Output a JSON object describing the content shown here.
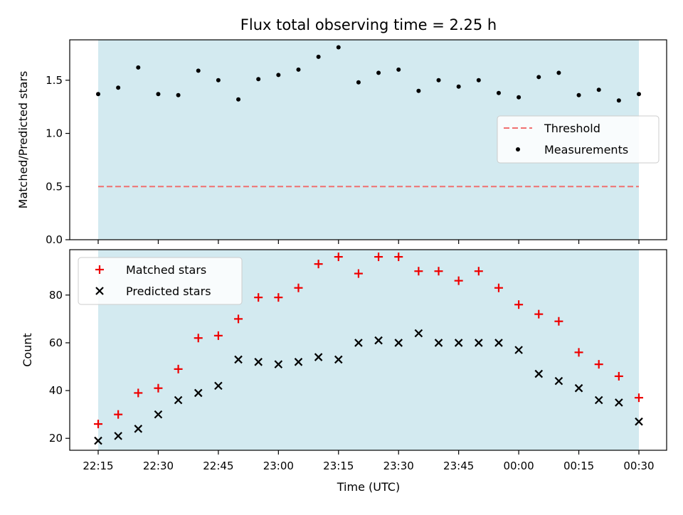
{
  "chart_data": {
    "title": "Flux total observing time = 2.25 h",
    "xlabel": "Time (UTC)",
    "x_tick_labels": [
      "22:15",
      "22:30",
      "22:45",
      "23:00",
      "23:15",
      "23:30",
      "23:45",
      "00:00",
      "00:15",
      "00:30"
    ],
    "x_time_start": "22:15",
    "x_time_end": "00:30",
    "shaded_region_color": "#d3eaf0",
    "panels": [
      {
        "type": "scatter",
        "ylabel": "Matched/Predicted stars",
        "ylim": [
          0.0,
          1.88
        ],
        "y_ticks": [
          0.0,
          0.5,
          1.0,
          1.5
        ],
        "y_tick_labels": [
          "0.0",
          "0.5",
          "1.0",
          "1.5"
        ],
        "legend_position": "center-right",
        "threshold": {
          "name": "Threshold",
          "value": 0.5,
          "color": "#f07070"
        },
        "series": [
          {
            "name": "Measurements",
            "color": "#000000",
            "marker": "dot",
            "x": [
              "22:15",
              "22:20",
              "22:25",
              "22:30",
              "22:35",
              "22:40",
              "22:45",
              "22:50",
              "22:55",
              "23:00",
              "23:05",
              "23:10",
              "23:15",
              "23:20",
              "23:25",
              "23:30",
              "23:35",
              "23:40",
              "23:45",
              "23:50",
              "23:55",
              "00:00",
              "00:05",
              "00:10",
              "00:15",
              "00:20",
              "00:25",
              "00:30"
            ],
            "y": [
              1.37,
              1.43,
              1.62,
              1.37,
              1.36,
              1.59,
              1.5,
              1.32,
              1.51,
              1.55,
              1.6,
              1.72,
              1.81,
              1.48,
              1.57,
              1.6,
              1.4,
              1.5,
              1.44,
              1.5,
              1.38,
              1.34,
              1.53,
              1.57,
              1.36,
              1.41,
              1.31,
              1.37
            ]
          }
        ]
      },
      {
        "type": "scatter",
        "ylabel": "Count",
        "ylim": [
          15,
          99
        ],
        "y_ticks": [
          20,
          40,
          60,
          80
        ],
        "y_tick_labels": [
          "20",
          "40",
          "60",
          "80"
        ],
        "legend_position": "upper-left",
        "series": [
          {
            "name": "Matched stars",
            "color": "#ee0000",
            "marker": "plus",
            "x": [
              "22:15",
              "22:20",
              "22:25",
              "22:30",
              "22:35",
              "22:40",
              "22:45",
              "22:50",
              "22:55",
              "23:00",
              "23:05",
              "23:10",
              "23:15",
              "23:20",
              "23:25",
              "23:30",
              "23:35",
              "23:40",
              "23:45",
              "23:50",
              "23:55",
              "00:00",
              "00:05",
              "00:10",
              "00:15",
              "00:20",
              "00:25",
              "00:30"
            ],
            "y": [
              26,
              30,
              39,
              41,
              49,
              62,
              63,
              70,
              79,
              79,
              83,
              93,
              96,
              89,
              96,
              96,
              90,
              90,
              86,
              90,
              83,
              76,
              72,
              69,
              56,
              51,
              46,
              37
            ]
          },
          {
            "name": "Predicted stars",
            "color": "#000000",
            "marker": "x",
            "x": [
              "22:15",
              "22:20",
              "22:25",
              "22:30",
              "22:35",
              "22:40",
              "22:45",
              "22:50",
              "22:55",
              "23:00",
              "23:05",
              "23:10",
              "23:15",
              "23:20",
              "23:25",
              "23:30",
              "23:35",
              "23:40",
              "23:45",
              "23:50",
              "23:55",
              "00:00",
              "00:05",
              "00:10",
              "00:15",
              "00:20",
              "00:25",
              "00:30"
            ],
            "y": [
              19,
              21,
              24,
              30,
              36,
              39,
              42,
              53,
              52,
              51,
              52,
              54,
              53,
              60,
              61,
              60,
              64,
              60,
              60,
              60,
              60,
              57,
              47,
              44,
              41,
              36,
              35,
              27
            ]
          }
        ]
      }
    ]
  }
}
